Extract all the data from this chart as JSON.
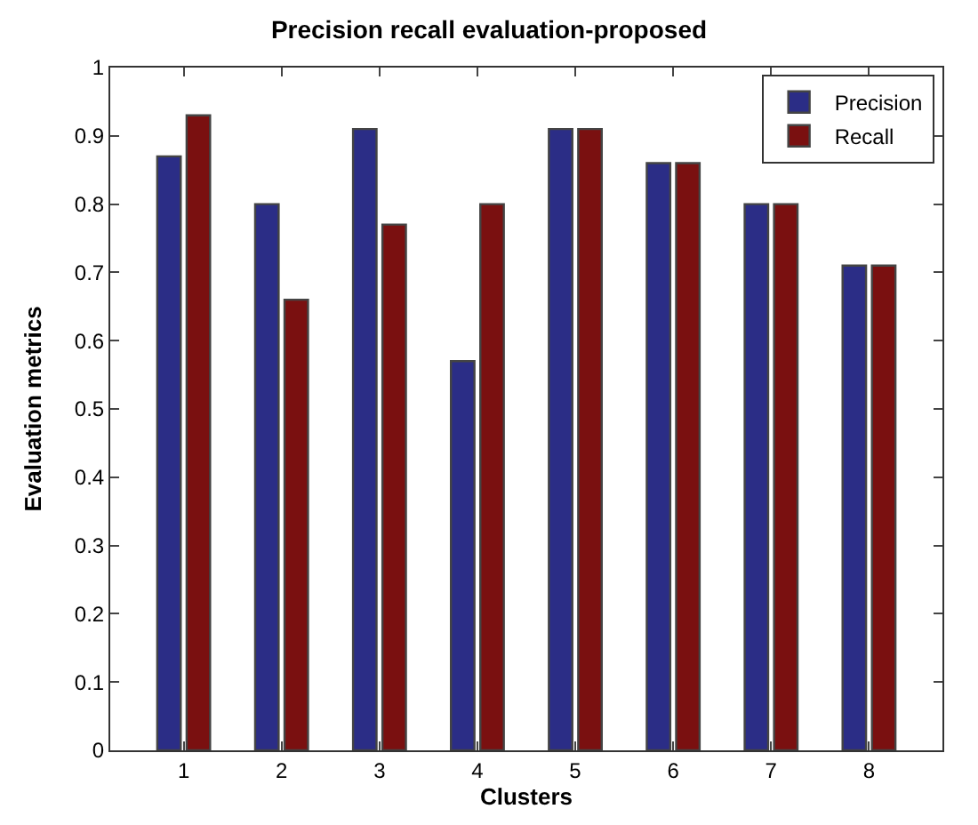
{
  "chart_data": {
    "type": "bar",
    "title": "Precision recall evaluation-proposed",
    "xlabel": "Clusters",
    "ylabel": "Evaluation metrics",
    "categories": [
      "1",
      "2",
      "3",
      "4",
      "5",
      "6",
      "7",
      "8"
    ],
    "series": [
      {
        "name": "Precision",
        "color": "#2b2d86",
        "values": [
          0.87,
          0.8,
          0.91,
          0.57,
          0.91,
          0.86,
          0.8,
          0.71
        ]
      },
      {
        "name": "Recall",
        "color": "#7a1010",
        "values": [
          0.93,
          0.66,
          0.77,
          0.8,
          0.91,
          0.86,
          0.8,
          0.71
        ]
      }
    ],
    "ylim": [
      0,
      1
    ],
    "yticks": [
      0,
      0.1,
      0.2,
      0.3,
      0.4,
      0.5,
      0.6,
      0.7,
      0.8,
      0.9,
      1
    ],
    "legend": "top right"
  }
}
